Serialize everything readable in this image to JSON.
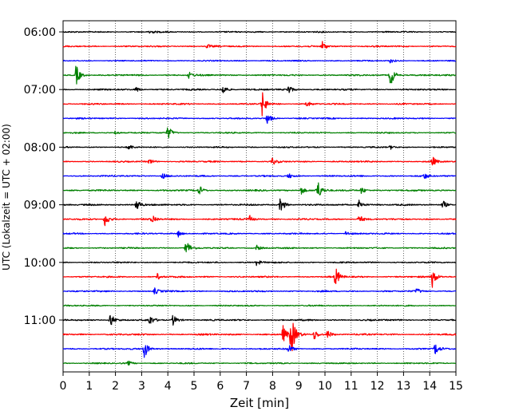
{
  "chart_data": {
    "type": "line",
    "title": "",
    "xlabel": "Zeit  [min]",
    "ylabel": "UTC (Lokalzeit = UTC + 02:00)",
    "xlim": [
      0,
      15
    ],
    "x_ticks": [
      0,
      1,
      2,
      3,
      4,
      5,
      6,
      7,
      8,
      9,
      10,
      11,
      12,
      13,
      14,
      15
    ],
    "x_tick_labels": [
      "0",
      "1",
      "2",
      "3",
      "4",
      "5",
      "6",
      "7",
      "8",
      "9",
      "10",
      "11",
      "12",
      "13",
      "14",
      "15"
    ],
    "y_tick_labels": [
      "06:00",
      "07:00",
      "08:00",
      "09:00",
      "10:00",
      "11:00"
    ],
    "vertical_grid": "dotted",
    "trace_interval_min": 15,
    "color_cycle": [
      "#000000",
      "#ff0000",
      "#0000ff",
      "#008000"
    ],
    "traces": [
      {
        "start": "06:00",
        "color": "#000000",
        "amp": 0.35,
        "events": [
          {
            "x": 3.3,
            "a": 0.45
          }
        ]
      },
      {
        "start": "06:15",
        "color": "#ff0000",
        "amp": 0.38,
        "events": [
          {
            "x": 9.9,
            "a": 1.0
          },
          {
            "x": 5.5,
            "a": 0.4
          }
        ]
      },
      {
        "start": "06:30",
        "color": "#0000ff",
        "amp": 0.32,
        "events": [
          {
            "x": 12.5,
            "a": 0.4
          }
        ]
      },
      {
        "start": "06:45",
        "color": "#008000",
        "amp": 0.4,
        "events": [
          {
            "x": 0.5,
            "a": 1.9
          },
          {
            "x": 12.5,
            "a": 2.2
          },
          {
            "x": 4.8,
            "a": 0.6
          }
        ]
      },
      {
        "start": "07:00",
        "color": "#000000",
        "amp": 0.4,
        "events": [
          {
            "x": 6.1,
            "a": 1.0
          },
          {
            "x": 8.6,
            "a": 0.9
          },
          {
            "x": 2.8,
            "a": 0.5
          }
        ]
      },
      {
        "start": "07:15",
        "color": "#ff0000",
        "amp": 0.38,
        "events": [
          {
            "x": 7.6,
            "a": 2.4
          },
          {
            "x": 9.3,
            "a": 0.6
          }
        ]
      },
      {
        "start": "07:30",
        "color": "#0000ff",
        "amp": 0.38,
        "events": [
          {
            "x": 7.8,
            "a": 1.0
          }
        ]
      },
      {
        "start": "07:45",
        "color": "#008000",
        "amp": 0.35,
        "events": [
          {
            "x": 4.0,
            "a": 1.3
          },
          {
            "x": 2.0,
            "a": 0.4
          }
        ]
      },
      {
        "start": "08:00",
        "color": "#000000",
        "amp": 0.35,
        "events": [
          {
            "x": 2.5,
            "a": 0.5
          },
          {
            "x": 12.5,
            "a": 0.4
          }
        ]
      },
      {
        "start": "08:15",
        "color": "#ff0000",
        "amp": 0.38,
        "events": [
          {
            "x": 8.0,
            "a": 0.6
          },
          {
            "x": 14.1,
            "a": 0.9
          },
          {
            "x": 3.3,
            "a": 0.5
          }
        ]
      },
      {
        "start": "08:30",
        "color": "#0000ff",
        "amp": 0.4,
        "events": [
          {
            "x": 3.8,
            "a": 0.6
          },
          {
            "x": 8.6,
            "a": 0.5
          },
          {
            "x": 13.8,
            "a": 0.5
          }
        ]
      },
      {
        "start": "08:45",
        "color": "#008000",
        "amp": 0.42,
        "events": [
          {
            "x": 9.7,
            "a": 2.2
          },
          {
            "x": 9.1,
            "a": 0.8
          },
          {
            "x": 5.2,
            "a": 0.9
          },
          {
            "x": 11.4,
            "a": 0.7
          }
        ]
      },
      {
        "start": "09:00",
        "color": "#000000",
        "amp": 0.42,
        "events": [
          {
            "x": 2.8,
            "a": 1.4
          },
          {
            "x": 8.3,
            "a": 1.6
          },
          {
            "x": 11.3,
            "a": 1.1
          },
          {
            "x": 14.5,
            "a": 0.9
          }
        ]
      },
      {
        "start": "09:15",
        "color": "#ff0000",
        "amp": 0.42,
        "events": [
          {
            "x": 1.6,
            "a": 1.4
          },
          {
            "x": 3.4,
            "a": 0.9
          },
          {
            "x": 7.1,
            "a": 0.8
          },
          {
            "x": 11.3,
            "a": 0.8
          }
        ]
      },
      {
        "start": "09:30",
        "color": "#0000ff",
        "amp": 0.38,
        "events": [
          {
            "x": 4.4,
            "a": 0.6
          },
          {
            "x": 10.8,
            "a": 0.5
          }
        ]
      },
      {
        "start": "09:45",
        "color": "#008000",
        "amp": 0.38,
        "events": [
          {
            "x": 4.7,
            "a": 1.6
          },
          {
            "x": 7.4,
            "a": 0.5
          }
        ]
      },
      {
        "start": "10:00",
        "color": "#000000",
        "amp": 0.38,
        "events": [
          {
            "x": 7.4,
            "a": 0.6
          }
        ]
      },
      {
        "start": "10:15",
        "color": "#ff0000",
        "amp": 0.4,
        "events": [
          {
            "x": 10.4,
            "a": 1.9
          },
          {
            "x": 14.1,
            "a": 1.9
          },
          {
            "x": 3.6,
            "a": 0.6
          }
        ]
      },
      {
        "start": "10:30",
        "color": "#0000ff",
        "amp": 0.4,
        "events": [
          {
            "x": 3.5,
            "a": 0.6
          },
          {
            "x": 13.5,
            "a": 0.5
          }
        ]
      },
      {
        "start": "10:45",
        "color": "#008000",
        "amp": 0.35,
        "events": []
      },
      {
        "start": "11:00",
        "color": "#000000",
        "amp": 0.42,
        "events": [
          {
            "x": 1.8,
            "a": 1.4
          },
          {
            "x": 3.3,
            "a": 0.9
          },
          {
            "x": 4.2,
            "a": 1.0
          }
        ]
      },
      {
        "start": "11:15",
        "color": "#ff0000",
        "amp": 0.45,
        "events": [
          {
            "x": 8.7,
            "a": 4.5
          },
          {
            "x": 8.4,
            "a": 1.6
          },
          {
            "x": 9.6,
            "a": 1.0
          },
          {
            "x": 10.1,
            "a": 0.8
          }
        ]
      },
      {
        "start": "11:30",
        "color": "#0000ff",
        "amp": 0.4,
        "events": [
          {
            "x": 3.1,
            "a": 1.8
          },
          {
            "x": 14.2,
            "a": 1.1
          },
          {
            "x": 8.6,
            "a": 0.8
          }
        ]
      },
      {
        "start": "11:45",
        "color": "#008000",
        "amp": 0.36,
        "events": [
          {
            "x": 2.5,
            "a": 0.4
          }
        ]
      }
    ]
  }
}
